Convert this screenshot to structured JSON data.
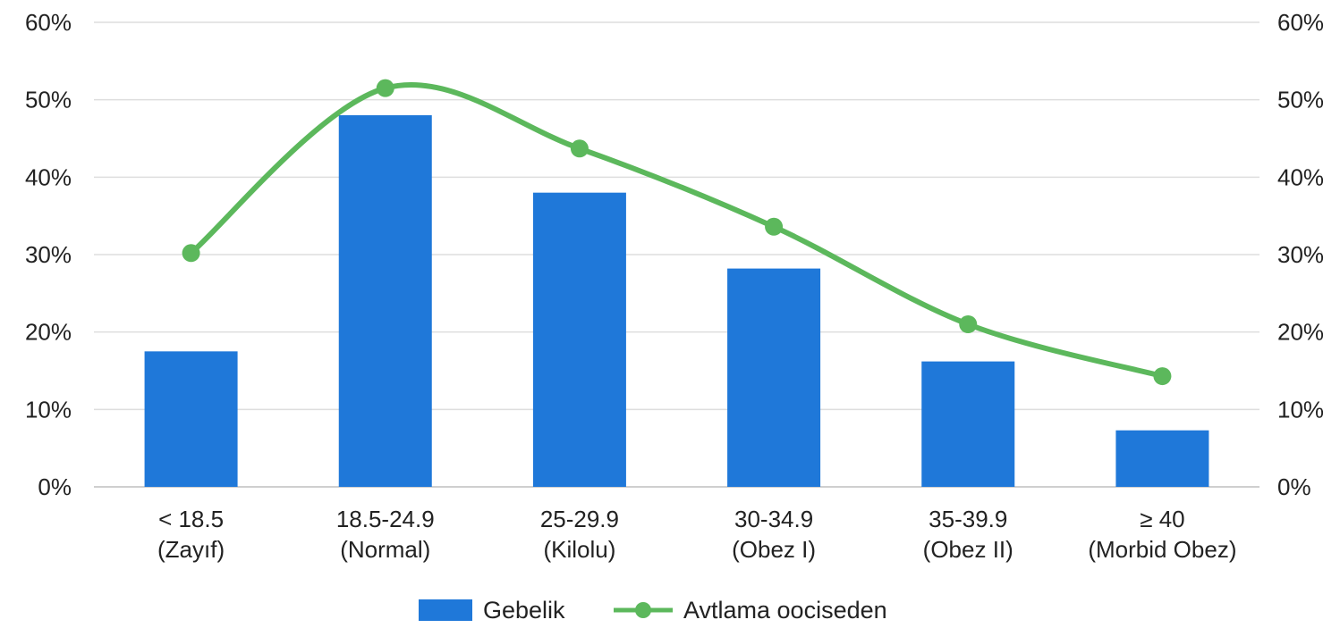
{
  "chart_data": {
    "type": "bar",
    "categories": [
      [
        "< 18.5",
        "(Zayıf)"
      ],
      [
        "18.5-24.9",
        "(Normal)"
      ],
      [
        "25-29.9",
        "(Kilolu)"
      ],
      [
        "30-34.9",
        "(Obez I)"
      ],
      [
        "35-39.9",
        "(Obez II)"
      ],
      [
        "≥ 40",
        "(Morbid Obez)"
      ]
    ],
    "series": [
      {
        "name": "Gebelik",
        "type": "bar",
        "axis": "left",
        "color": "#1f78d9",
        "values": [
          17.5,
          48,
          38,
          28.2,
          16.2,
          7.3
        ]
      },
      {
        "name": "Avtlama ooci­seden",
        "type": "line",
        "axis": "right",
        "color": "#5cb85c",
        "values": [
          30.2,
          51.5,
          43.7,
          33.6,
          21,
          14.3
        ]
      }
    ],
    "ylim": [
      0,
      60
    ],
    "yticks": [
      "0%",
      "10%",
      "20%",
      "30%",
      "40%",
      "50%",
      "60%"
    ],
    "y2ticks": [
      "0%",
      "10%",
      "20%",
      "30%",
      "40%",
      "50%",
      "60%"
    ],
    "grid": true,
    "legend": "bottom-center"
  }
}
